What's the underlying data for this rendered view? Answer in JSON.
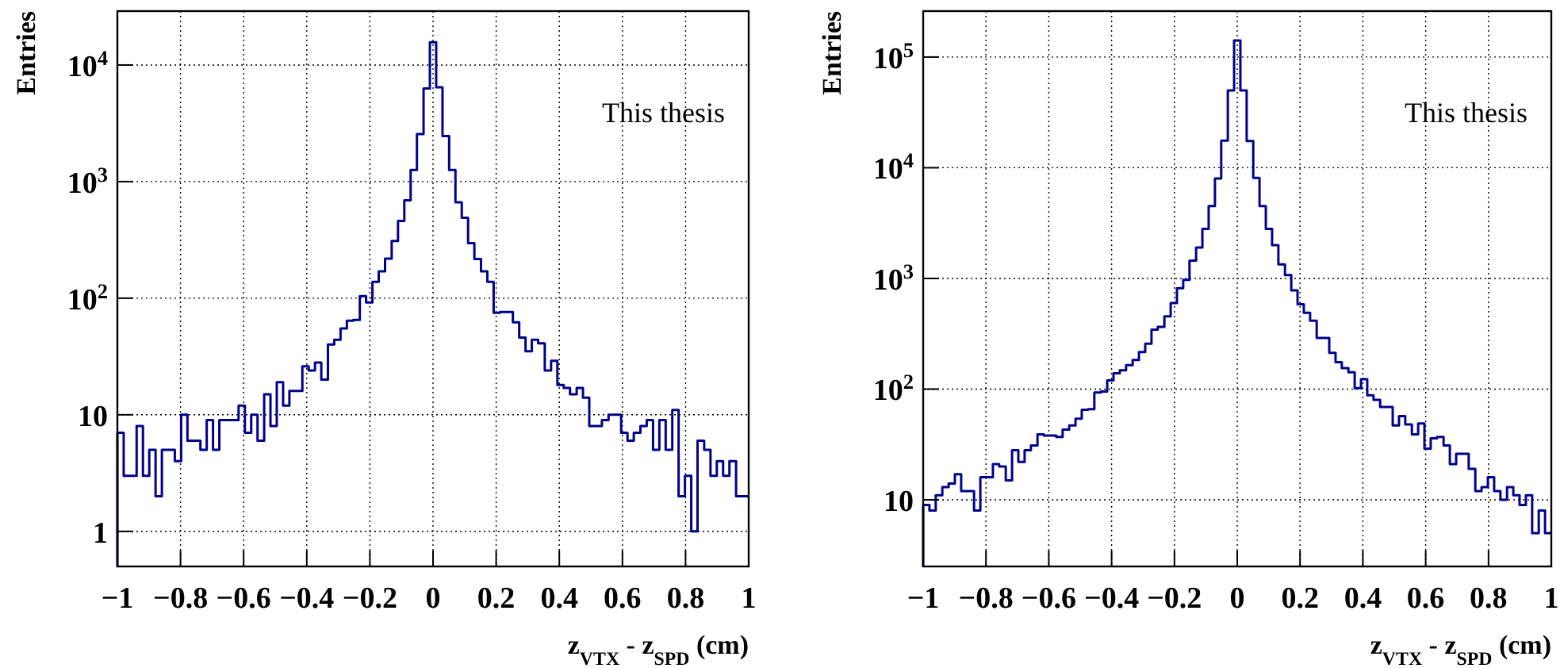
{
  "chart_data": [
    {
      "type": "histogram",
      "xlabel": "z$_{VTX}$ - z$_{SPD}$ (cm)",
      "ylabel": "Entries",
      "annotations": [
        "This thesis"
      ],
      "log": "y",
      "grid": true,
      "bins": [
        -1,
        -0.98,
        -0.96,
        -0.939,
        -0.919,
        -0.899,
        -0.879,
        -0.859,
        -0.838,
        -0.818,
        -0.798,
        -0.778,
        -0.758,
        -0.737,
        -0.717,
        -0.697,
        -0.677,
        -0.657,
        -0.636,
        -0.616,
        -0.596,
        -0.576,
        -0.556,
        -0.535,
        -0.515,
        -0.495,
        -0.475,
        -0.455,
        -0.434,
        -0.414,
        -0.394,
        -0.374,
        -0.354,
        -0.333,
        -0.313,
        -0.293,
        -0.273,
        -0.253,
        -0.232,
        -0.212,
        -0.192,
        -0.172,
        -0.152,
        -0.131,
        -0.111,
        -0.091,
        -0.071,
        -0.051,
        -0.03,
        -0.01,
        0.01,
        0.03,
        0.051,
        0.071,
        0.091,
        0.111,
        0.131,
        0.152,
        0.172,
        0.192,
        0.212,
        0.232,
        0.253,
        0.273,
        0.293,
        0.313,
        0.333,
        0.354,
        0.374,
        0.394,
        0.414,
        0.434,
        0.455,
        0.475,
        0.495,
        0.515,
        0.535,
        0.556,
        0.576,
        0.596,
        0.616,
        0.636,
        0.657,
        0.677,
        0.697,
        0.717,
        0.737,
        0.758,
        0.778,
        0.798,
        0.818,
        0.838,
        0.859,
        0.879,
        0.899,
        0.919,
        0.939,
        0.96,
        0.98,
        1
      ],
      "values": [
        7,
        3,
        3,
        8,
        3,
        5,
        2,
        5,
        5,
        4,
        10,
        6,
        6,
        5,
        9,
        5,
        9,
        9,
        9,
        12,
        7,
        10,
        6,
        15,
        8,
        19,
        12,
        16,
        16,
        26,
        24,
        28,
        20,
        40,
        44,
        55,
        64,
        65,
        104,
        92,
        138,
        170,
        218,
        310,
        460,
        690,
        1260,
        2560,
        6300,
        15700,
        6450,
        2460,
        1260,
        665,
        490,
        297,
        217,
        170,
        138,
        75,
        76,
        76,
        62,
        46,
        35,
        44,
        41,
        24,
        29,
        18,
        17,
        15,
        17,
        14,
        8,
        8,
        9,
        10,
        10,
        7,
        6,
        7,
        8,
        9,
        5,
        9,
        5,
        11,
        2,
        3,
        1,
        6,
        5,
        3,
        4,
        3,
        4,
        2,
        2
      ],
      "color": "#00008b",
      "xlim": [
        -1,
        1
      ],
      "xticks": [
        {
          "value": -1,
          "label": "−1"
        },
        {
          "value": -0.8,
          "label": "−0.8"
        },
        {
          "value": -0.6,
          "label": "−0.6"
        },
        {
          "value": -0.4,
          "label": "−0.4"
        },
        {
          "value": -0.2,
          "label": "−0.2"
        },
        0,
        0.2,
        0.4,
        0.6,
        0.8,
        1
      ],
      "ylim": [
        0.5,
        29000
      ],
      "yticks": [
        {
          "value": 1,
          "label": "1"
        },
        {
          "value": 10,
          "label": "10"
        },
        {
          "value": 100,
          "label": "10$^{2}$"
        },
        {
          "value": 1000,
          "label": "10$^{3}$"
        },
        {
          "value": 10000,
          "label": "10$^{4}$"
        }
      ]
    },
    {
      "type": "histogram",
      "xlabel": "z$_{VTX}$ - z$_{SPD}$ (cm)",
      "ylabel": "Entries",
      "annotations": [
        "This thesis"
      ],
      "log": "y",
      "grid": true,
      "bins": [
        -1,
        -0.98,
        -0.96,
        -0.939,
        -0.919,
        -0.899,
        -0.879,
        -0.859,
        -0.838,
        -0.818,
        -0.798,
        -0.778,
        -0.758,
        -0.737,
        -0.717,
        -0.697,
        -0.677,
        -0.657,
        -0.636,
        -0.616,
        -0.596,
        -0.576,
        -0.556,
        -0.535,
        -0.515,
        -0.495,
        -0.475,
        -0.455,
        -0.434,
        -0.414,
        -0.394,
        -0.374,
        -0.354,
        -0.333,
        -0.313,
        -0.293,
        -0.273,
        -0.253,
        -0.232,
        -0.212,
        -0.192,
        -0.172,
        -0.152,
        -0.131,
        -0.111,
        -0.091,
        -0.071,
        -0.051,
        -0.03,
        -0.01,
        0.01,
        0.03,
        0.051,
        0.071,
        0.091,
        0.111,
        0.131,
        0.152,
        0.172,
        0.192,
        0.212,
        0.232,
        0.253,
        0.273,
        0.293,
        0.313,
        0.333,
        0.354,
        0.374,
        0.394,
        0.414,
        0.434,
        0.455,
        0.475,
        0.495,
        0.515,
        0.535,
        0.556,
        0.576,
        0.596,
        0.616,
        0.636,
        0.657,
        0.677,
        0.697,
        0.717,
        0.737,
        0.758,
        0.778,
        0.798,
        0.818,
        0.838,
        0.859,
        0.879,
        0.899,
        0.919,
        0.939,
        0.96,
        0.98,
        1
      ],
      "values": [
        9,
        8,
        11,
        13,
        14,
        17,
        12,
        12,
        8,
        16,
        16,
        21,
        20,
        15,
        28,
        22,
        28,
        31,
        39,
        38,
        38,
        37,
        43,
        47,
        54,
        65,
        66,
        93,
        95,
        120,
        139,
        148,
        165,
        183,
        216,
        257,
        345,
        365,
        455,
        600,
        815,
        970,
        1450,
        1900,
        2800,
        4500,
        8000,
        17600,
        50000,
        141000,
        50000,
        17400,
        8100,
        4500,
        2800,
        2000,
        1340,
        1070,
        780,
        585,
        490,
        415,
        290,
        290,
        213,
        175,
        155,
        142,
        102,
        123,
        88,
        80,
        69,
        69,
        47,
        57,
        48,
        39,
        49,
        29,
        36,
        37,
        31,
        21,
        26,
        26,
        19,
        12,
        13,
        16,
        12,
        10,
        13,
        11,
        9,
        11,
        5,
        8,
        5
      ],
      "color": "#00008b",
      "xlim": [
        -1,
        1
      ],
      "xticks": [
        {
          "value": -1,
          "label": "−1"
        },
        {
          "value": -0.8,
          "label": "−0.8"
        },
        {
          "value": -0.6,
          "label": "−0.6"
        },
        {
          "value": -0.4,
          "label": "−0.4"
        },
        {
          "value": -0.2,
          "label": "−0.2"
        },
        0,
        0.2,
        0.4,
        0.6,
        0.8,
        1
      ],
      "ylim": [
        2.5,
        260000
      ],
      "yticks": [
        {
          "value": 10,
          "label": "10"
        },
        {
          "value": 100,
          "label": "10$^{2}$"
        },
        {
          "value": 1000,
          "label": "10$^{3}$"
        },
        {
          "value": 10000,
          "label": "10$^{4}$"
        },
        {
          "value": 100000,
          "label": "10$^{5}$"
        }
      ]
    }
  ]
}
